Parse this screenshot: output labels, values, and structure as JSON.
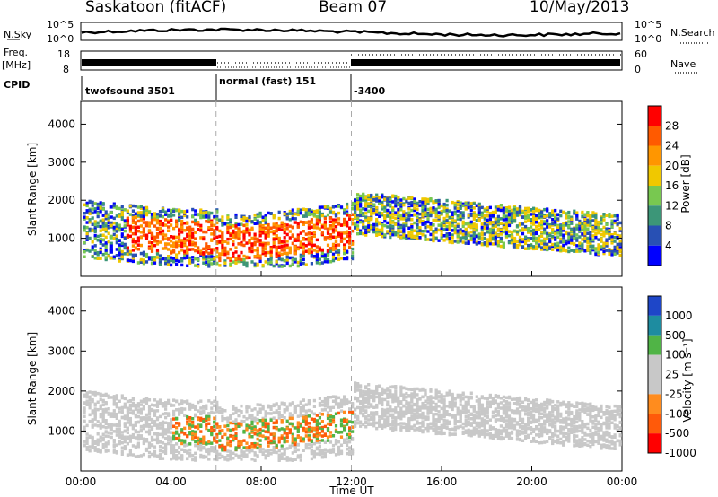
{
  "header": {
    "station": "Saskatoon (fitACF)",
    "beam": "Beam 07",
    "date": "10/May/2013"
  },
  "side_labels": {
    "nsky": "N.Sky",
    "nsky_ticks": [
      "10^5",
      "10^0"
    ],
    "freq_line1": "Freq.",
    "freq_line2": "[MHz]",
    "freq_ticks": [
      "18",
      "8"
    ],
    "cpid": "CPID",
    "nsearch": "N.Search",
    "nsearch_ticks": [
      "10^5",
      "10^0"
    ],
    "nave": "Nave",
    "nave_ticks": [
      "60",
      "0"
    ]
  },
  "cpid_segments": [
    "twofsound 3501",
    "normal (fast) 151",
    "-3400"
  ],
  "colorbars": {
    "power_label": "Power [dB]",
    "power_ticks": [
      "28",
      "24",
      "20",
      "16",
      "12",
      "8",
      "4"
    ],
    "power_colors": [
      "#ff0000",
      "#ff5a00",
      "#ff9600",
      "#f0c800",
      "#78c850",
      "#3c9678",
      "#2850b4",
      "#0000ff"
    ],
    "velocity_label": "Velocity [m s⁻¹]",
    "velocity_ticks": [
      "1000",
      "500",
      "100",
      "25",
      "-25",
      "-100",
      "-500",
      "-1000"
    ],
    "velocity_colors": [
      "#1e46c8",
      "#1e8ca0",
      "#50b446",
      "#c8c8c8",
      "#c8c8c8",
      "#ff8c1e",
      "#ff5a0a",
      "#ff0000"
    ]
  },
  "chart_data": [
    {
      "type": "heatmap",
      "name": "power",
      "ylabel": "Slant Range [km]",
      "xlabel": "",
      "yticks": [
        "1000",
        "2000",
        "3000",
        "4000"
      ],
      "ylim": [
        0,
        4600
      ],
      "xticks": [
        "00:00",
        "04:00",
        "08:00",
        "12:00",
        "16:00",
        "20:00",
        "00:00"
      ],
      "xlim": [
        0,
        24
      ],
      "colorbar_label": "Power [dB]",
      "colorbar_ticks": [
        28,
        24,
        20,
        16,
        12,
        8,
        4
      ],
      "mode_changes_ut": [
        6,
        12
      ]
    },
    {
      "type": "heatmap",
      "name": "velocity",
      "ylabel": "Slant Range [km]",
      "xlabel": "Time UT",
      "yticks": [
        "1000",
        "2000",
        "3000",
        "4000"
      ],
      "ylim": [
        0,
        4600
      ],
      "xticks": [
        "00:00",
        "04:00",
        "08:00",
        "12:00",
        "16:00",
        "20:00",
        "00:00"
      ],
      "xlim": [
        0,
        24
      ],
      "colorbar_label": "Velocity [m s⁻¹]",
      "colorbar_ticks": [
        1000,
        500,
        100,
        25,
        -25,
        -100,
        -500,
        -1000
      ],
      "mode_changes_ut": [
        6,
        12
      ]
    }
  ]
}
